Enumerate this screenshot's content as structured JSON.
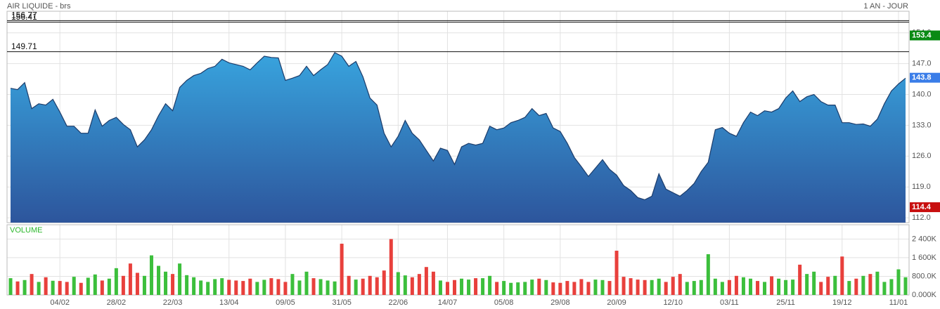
{
  "chart_data": [
    {
      "type": "area",
      "title": "AIR LIQUIDE - brs",
      "subtitle": "1 AN - JOUR",
      "values": [
        141.4,
        141.1,
        142.7,
        136.8,
        137.9,
        137.6,
        138.9,
        136.0,
        132.8,
        132.8,
        131.2,
        131.2,
        136.5,
        132.8,
        134.1,
        134.8,
        133.2,
        132.0,
        128.1,
        129.7,
        132.0,
        135.2,
        137.9,
        136.3,
        141.6,
        143.2,
        144.3,
        144.8,
        145.9,
        146.4,
        148.0,
        147.2,
        146.8,
        146.4,
        145.6,
        147.2,
        148.7,
        148.4,
        148.3,
        143.2,
        143.7,
        144.3,
        146.4,
        144.3,
        145.6,
        146.8,
        149.5,
        148.7,
        146.4,
        147.5,
        144.0,
        139.2,
        137.6,
        131.2,
        128.1,
        130.5,
        134.1,
        131.2,
        129.7,
        127.3,
        124.9,
        127.8,
        127.3,
        124.1,
        128.1,
        128.9,
        128.5,
        128.9,
        132.8,
        132.0,
        132.4,
        133.6,
        134.1,
        134.8,
        136.8,
        135.2,
        135.7,
        132.4,
        131.6,
        128.9,
        125.7,
        123.6,
        121.4,
        123.3,
        125.2,
        123.0,
        121.7,
        119.3,
        118.2,
        116.6,
        116.1,
        116.9,
        122.0,
        118.5,
        117.7,
        116.9,
        118.2,
        119.8,
        122.5,
        124.6,
        132.0,
        132.5,
        131.2,
        130.5,
        133.6,
        136.0,
        135.2,
        136.3,
        136.0,
        136.8,
        139.2,
        140.8,
        138.4,
        139.5,
        140.0,
        138.4,
        137.6,
        137.6,
        133.6,
        133.6,
        133.2,
        133.3,
        132.8,
        134.4,
        137.9,
        140.8,
        142.4,
        143.7
      ],
      "line_color": "#1c3c6a",
      "fill_top": "#38a4de",
      "fill_bottom": "#2d559c",
      "ylim": [
        110.9,
        158.9
      ],
      "yticks": [
        {
          "value": 112,
          "label": "112.0"
        },
        {
          "value": 119,
          "label": "119.0"
        },
        {
          "value": 126,
          "label": "126.0"
        },
        {
          "value": 133,
          "label": "133.0"
        },
        {
          "value": 140,
          "label": "140.0"
        },
        {
          "value": 147,
          "label": "147.0"
        },
        {
          "value": 154,
          "label": "154.0"
        }
      ],
      "reference_lines": [
        156.41,
        156.77,
        149.71
      ],
      "markers": [
        {
          "value": 153.4,
          "color": "#0a8a14"
        },
        {
          "value": 143.8,
          "color": "#3a7de8"
        },
        {
          "value": 114.4,
          "color": "#c80f0f"
        }
      ],
      "grid": true
    },
    {
      "type": "bar",
      "title": "VOLUME",
      "title_color": "#2db82d",
      "categories": [
        null,
        null,
        null,
        null,
        null,
        null,
        null,
        "04/02",
        null,
        null,
        null,
        null,
        null,
        null,
        null,
        "28/02",
        null,
        null,
        null,
        null,
        null,
        null,
        null,
        "22/03",
        null,
        null,
        null,
        null,
        null,
        null,
        null,
        "13/04",
        null,
        null,
        null,
        null,
        null,
        null,
        null,
        "09/05",
        null,
        null,
        null,
        null,
        null,
        null,
        null,
        "31/05",
        null,
        null,
        null,
        null,
        null,
        null,
        null,
        "22/06",
        null,
        null,
        null,
        null,
        null,
        null,
        "14/07",
        null,
        null,
        null,
        null,
        null,
        null,
        null,
        "05/08",
        null,
        null,
        null,
        null,
        null,
        null,
        null,
        "29/08",
        null,
        null,
        null,
        null,
        null,
        null,
        null,
        "20/09",
        null,
        null,
        null,
        null,
        null,
        null,
        null,
        "12/10",
        null,
        null,
        null,
        null,
        null,
        null,
        null,
        "03/11",
        null,
        null,
        null,
        null,
        null,
        null,
        null,
        "25/11",
        null,
        null,
        null,
        null,
        null,
        null,
        null,
        "19/12",
        null,
        null,
        null,
        null,
        null,
        null,
        null,
        "11/01",
        null
      ],
      "values": [
        720,
        580,
        640,
        900,
        560,
        760,
        610,
        600,
        560,
        780,
        520,
        740,
        880,
        620,
        700,
        1150,
        820,
        1350,
        950,
        820,
        1700,
        1250,
        1000,
        900,
        1350,
        850,
        760,
        620,
        560,
        680,
        720,
        650,
        620,
        600,
        700,
        560,
        650,
        720,
        680,
        560,
        900,
        620,
        1000,
        720,
        680,
        620,
        580,
        2200,
        820,
        660,
        700,
        820,
        760,
        1050,
        2400,
        980,
        840,
        760,
        900,
        1200,
        1000,
        620,
        560,
        640,
        700,
        660,
        720,
        720,
        820,
        560,
        600,
        520,
        540,
        560,
        660,
        700,
        640,
        540,
        520,
        600,
        560,
        680,
        560,
        660,
        640,
        600,
        1900,
        780,
        720,
        660,
        640,
        640,
        700,
        560,
        780,
        900,
        560,
        600,
        640,
        1750,
        700,
        560,
        640,
        820,
        760,
        700,
        600,
        560,
        800,
        700,
        640,
        660,
        1300,
        900,
        1000,
        560,
        780,
        820,
        1650,
        600,
        700,
        820,
        900,
        1000,
        560,
        680,
        1100,
        760
      ],
      "up_color": "#3cbf3c",
      "down_color": "#e8403c",
      "ylim": [
        0,
        3015
      ],
      "yticks": [
        {
          "value": 0,
          "label": "0.000K"
        },
        {
          "value": 800,
          "label": "800.0K"
        },
        {
          "value": 1600,
          "label": "1 600K"
        },
        {
          "value": 2400,
          "label": "2 400K"
        }
      ],
      "grid": true
    }
  ]
}
